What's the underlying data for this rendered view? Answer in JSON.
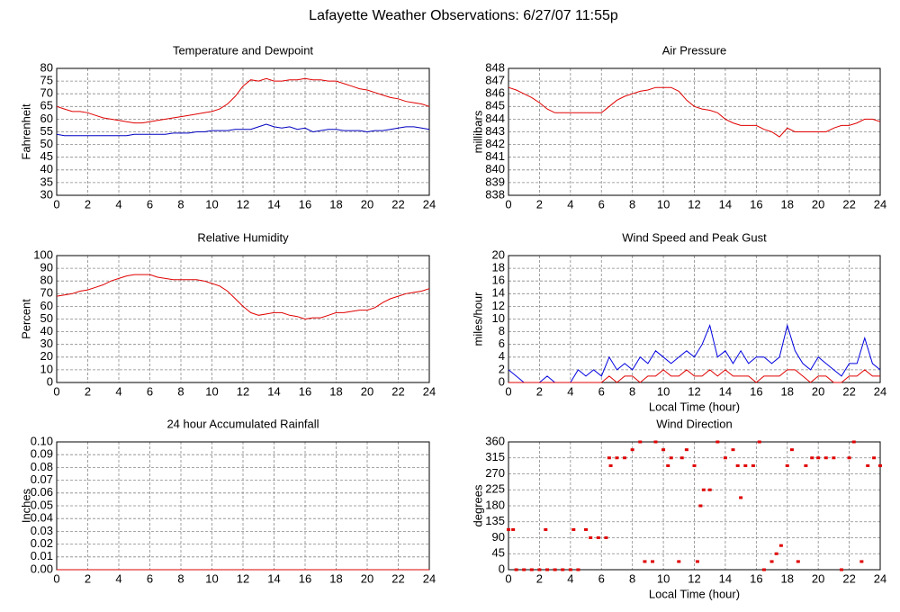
{
  "title": "Lafayette Weather Observations: 6/27/07 11:55p",
  "chart_data": [
    {
      "type": "line",
      "title": "Temperature and Dewpoint",
      "ylabel": "Fahrenheit",
      "xlim": [
        0,
        24
      ],
      "xticks": [
        0,
        2,
        4,
        6,
        8,
        10,
        12,
        14,
        16,
        18,
        20,
        22,
        24
      ],
      "ylim": [
        30,
        80
      ],
      "yticks": [
        30,
        35,
        40,
        45,
        50,
        55,
        60,
        65,
        70,
        75,
        80
      ],
      "grid": true,
      "x": [
        0,
        0.5,
        1,
        1.5,
        2,
        2.5,
        3,
        3.5,
        4,
        4.5,
        5,
        5.5,
        6,
        6.5,
        7,
        7.5,
        8,
        8.5,
        9,
        9.5,
        10,
        10.5,
        11,
        11.5,
        12,
        12.5,
        13,
        13.5,
        14,
        14.5,
        15,
        15.5,
        16,
        16.5,
        17,
        17.5,
        18,
        18.5,
        19,
        19.5,
        20,
        20.5,
        21,
        21.5,
        22,
        22.5,
        23,
        23.5,
        24
      ],
      "series": [
        {
          "color": "#e00000",
          "values": [
            65,
            64,
            63,
            63,
            62.5,
            61.5,
            60.5,
            60,
            59.5,
            59,
            58.5,
            58.5,
            59,
            59.5,
            60,
            60.5,
            61,
            61.5,
            62,
            62.5,
            63,
            64,
            66,
            69,
            73,
            75.5,
            75,
            76,
            75,
            75,
            75.5,
            75.5,
            76,
            75.5,
            75.5,
            75,
            75,
            74,
            73,
            72,
            71.5,
            70.5,
            69.5,
            68.5,
            68,
            67,
            66.5,
            66,
            65
          ]
        },
        {
          "color": "#0000c0",
          "values": [
            54,
            53.5,
            53.5,
            53.5,
            53.5,
            53.5,
            53.5,
            53.5,
            53.5,
            53.5,
            54,
            54,
            54,
            54,
            54,
            54.5,
            54.5,
            54.5,
            55,
            55,
            55.5,
            55.5,
            55.5,
            56,
            56,
            56,
            57,
            58,
            57,
            56.5,
            57,
            56,
            56.5,
            55,
            55.5,
            56,
            56,
            55.5,
            55.5,
            55.5,
            55,
            55.5,
            55.5,
            56,
            56.5,
            57,
            57,
            56.5,
            56
          ]
        }
      ]
    },
    {
      "type": "line",
      "title": "Air Pressure",
      "ylabel": "millibars",
      "xlim": [
        0,
        24
      ],
      "xticks": [
        0,
        2,
        4,
        6,
        8,
        10,
        12,
        14,
        16,
        18,
        20,
        22,
        24
      ],
      "ylim": [
        838,
        848
      ],
      "yticks": [
        838,
        839,
        840,
        841,
        842,
        843,
        844,
        845,
        846,
        847,
        848
      ],
      "grid": true,
      "x": [
        0,
        0.5,
        1,
        1.5,
        2,
        2.5,
        3,
        3.5,
        4,
        4.5,
        5,
        5.5,
        6,
        6.5,
        7,
        7.5,
        8,
        8.5,
        9,
        9.5,
        10,
        10.5,
        11,
        11.5,
        12,
        12.5,
        13,
        13.5,
        14,
        14.5,
        15,
        15.5,
        16,
        16.5,
        17,
        17.5,
        18,
        18.5,
        19,
        19.5,
        20,
        20.5,
        21,
        21.5,
        22,
        22.5,
        23,
        23.5,
        24
      ],
      "series": [
        {
          "color": "#e00000",
          "values": [
            846.5,
            846.3,
            846,
            845.7,
            845.3,
            844.8,
            844.5,
            844.5,
            844.5,
            844.5,
            844.5,
            844.5,
            844.5,
            845,
            845.5,
            845.8,
            846,
            846.2,
            846.3,
            846.5,
            846.5,
            846.5,
            846.2,
            845.5,
            845,
            844.8,
            844.7,
            844.5,
            844,
            843.7,
            843.5,
            843.5,
            843.5,
            843.2,
            843,
            842.6,
            843.3,
            843,
            843,
            843,
            843,
            843,
            843.3,
            843.5,
            843.5,
            843.7,
            844,
            844,
            843.8
          ]
        }
      ]
    },
    {
      "type": "line",
      "title": "Relative Humidity",
      "ylabel": "Percent",
      "xlim": [
        0,
        24
      ],
      "xticks": [
        0,
        2,
        4,
        6,
        8,
        10,
        12,
        14,
        16,
        18,
        20,
        22,
        24
      ],
      "ylim": [
        0,
        100
      ],
      "yticks": [
        0,
        10,
        20,
        30,
        40,
        50,
        60,
        70,
        80,
        90,
        100
      ],
      "grid": true,
      "x": [
        0,
        0.5,
        1,
        1.5,
        2,
        2.5,
        3,
        3.5,
        4,
        4.5,
        5,
        5.5,
        6,
        6.5,
        7,
        7.5,
        8,
        8.5,
        9,
        9.5,
        10,
        10.5,
        11,
        11.5,
        12,
        12.5,
        13,
        13.5,
        14,
        14.5,
        15,
        15.5,
        16,
        16.5,
        17,
        17.5,
        18,
        18.5,
        19,
        19.5,
        20,
        20.5,
        21,
        21.5,
        22,
        22.5,
        23,
        23.5,
        24
      ],
      "series": [
        {
          "color": "#e00000",
          "values": [
            68,
            69,
            70,
            72,
            73,
            75,
            77,
            80,
            82,
            84,
            85,
            85,
            85,
            83,
            82,
            81,
            81,
            81,
            81,
            80,
            78,
            76,
            72,
            66,
            60,
            55,
            53,
            54,
            55,
            55,
            53,
            52,
            50,
            51,
            51,
            53,
            55,
            55,
            56,
            57,
            57,
            59,
            63,
            66,
            68,
            70,
            71,
            72,
            74
          ]
        }
      ]
    },
    {
      "type": "line",
      "title": "Wind Speed and Peak Gust",
      "ylabel": "miles/hour",
      "xlabel": "Local Time (hour)",
      "xlim": [
        0,
        24
      ],
      "xticks": [
        0,
        2,
        4,
        6,
        8,
        10,
        12,
        14,
        16,
        18,
        20,
        22,
        24
      ],
      "ylim": [
        0,
        20
      ],
      "yticks": [
        0,
        2,
        4,
        6,
        8,
        10,
        12,
        14,
        16,
        18,
        20
      ],
      "grid": true,
      "x": [
        0,
        0.5,
        1,
        1.5,
        2,
        2.5,
        3,
        3.5,
        4,
        4.5,
        5,
        5.5,
        6,
        6.5,
        7,
        7.5,
        8,
        8.5,
        9,
        9.5,
        10,
        10.5,
        11,
        11.5,
        12,
        12.5,
        13,
        13.5,
        14,
        14.5,
        15,
        15.5,
        16,
        16.5,
        17,
        17.5,
        18,
        18.5,
        19,
        19.5,
        20,
        20.5,
        21,
        21.5,
        22,
        22.5,
        23,
        23.5,
        24
      ],
      "series": [
        {
          "color": "#0000e0",
          "values": [
            2,
            1,
            0,
            0,
            0,
            1,
            0,
            0,
            0,
            2,
            1,
            2,
            1,
            4,
            2,
            3,
            2,
            4,
            3,
            5,
            4,
            3,
            4,
            5,
            4,
            6,
            9,
            4,
            5,
            3,
            5,
            3,
            4,
            4,
            3,
            4,
            9,
            5,
            3,
            2,
            4,
            3,
            2,
            1,
            3,
            3,
            7,
            3,
            2
          ]
        },
        {
          "color": "#e00000",
          "values": [
            0,
            0,
            0,
            0,
            0,
            0,
            0,
            0,
            0,
            0,
            0,
            0,
            0,
            1,
            0,
            1,
            1,
            0,
            1,
            1,
            2,
            1,
            1,
            2,
            1,
            1,
            2,
            1,
            2,
            1,
            1,
            1,
            0,
            1,
            1,
            1,
            2,
            2,
            1,
            0,
            1,
            1,
            0,
            0,
            1,
            1,
            2,
            1,
            1
          ]
        }
      ]
    },
    {
      "type": "line",
      "title": "24 hour Accumulated Rainfall",
      "ylabel": "Inches",
      "xlim": [
        0,
        24
      ],
      "xticks": [
        0,
        2,
        4,
        6,
        8,
        10,
        12,
        14,
        16,
        18,
        20,
        22,
        24
      ],
      "ylim": [
        0,
        0.1
      ],
      "yticks": [
        {
          "value": 0,
          "label": "0.00"
        },
        {
          "value": 0.01,
          "label": "0.01"
        },
        {
          "value": 0.02,
          "label": "0.02"
        },
        {
          "value": 0.03,
          "label": "0.03"
        },
        {
          "value": 0.04,
          "label": "0.04"
        },
        {
          "value": 0.05,
          "label": "0.05"
        },
        {
          "value": 0.06,
          "label": "0.06"
        },
        {
          "value": 0.07,
          "label": "0.07"
        },
        {
          "value": 0.08,
          "label": "0.08"
        },
        {
          "value": 0.09,
          "label": "0.09"
        },
        {
          "value": 0.1,
          "label": "0.10"
        }
      ],
      "grid": true,
      "x": [
        0,
        24
      ],
      "series": [
        {
          "color": "#e00000",
          "values": [
            0,
            0
          ]
        }
      ]
    },
    {
      "type": "scatter",
      "title": "Wind Direction",
      "ylabel": "degrees",
      "xlabel": "Local Time (hour)",
      "xlim": [
        0,
        24
      ],
      "xticks": [
        0,
        2,
        4,
        6,
        8,
        10,
        12,
        14,
        16,
        18,
        20,
        22,
        24
      ],
      "ylim": [
        0,
        360
      ],
      "yticks": [
        0,
        45,
        90,
        135,
        180,
        225,
        270,
        315,
        360
      ],
      "grid": true,
      "x": [
        0,
        0.3,
        0.5,
        1,
        1.5,
        2,
        2.4,
        2.5,
        3,
        3.5,
        4,
        4.2,
        4.5,
        5,
        5.3,
        5.8,
        6.3,
        6.5,
        6.6,
        7,
        7.5,
        8,
        8.5,
        8.8,
        9.3,
        9.5,
        10,
        10.3,
        10.5,
        11,
        11.2,
        11.5,
        12,
        12.2,
        12.4,
        12.6,
        13,
        13.5,
        14,
        14.5,
        14.8,
        15,
        15.3,
        15.8,
        16.2,
        16.5,
        17,
        17.3,
        17.6,
        18,
        18.3,
        18.7,
        19.2,
        19.6,
        20,
        20.5,
        21,
        21.5,
        22,
        22.3,
        22.8,
        23.2,
        23.6,
        24
      ],
      "series": [
        {
          "color": "#e00000",
          "values": [
            113,
            113,
            0,
            0,
            0,
            0,
            113,
            0,
            0,
            0,
            0,
            113,
            0,
            113,
            90,
            90,
            90,
            315,
            293,
            315,
            315,
            338,
            360,
            23,
            23,
            360,
            338,
            293,
            315,
            23,
            315,
            338,
            293,
            23,
            180,
            225,
            225,
            360,
            315,
            338,
            293,
            203,
            293,
            293,
            360,
            0,
            23,
            45,
            68,
            293,
            338,
            23,
            293,
            315,
            315,
            315,
            315,
            0,
            315,
            360,
            23,
            293,
            315,
            293
          ]
        }
      ]
    }
  ]
}
